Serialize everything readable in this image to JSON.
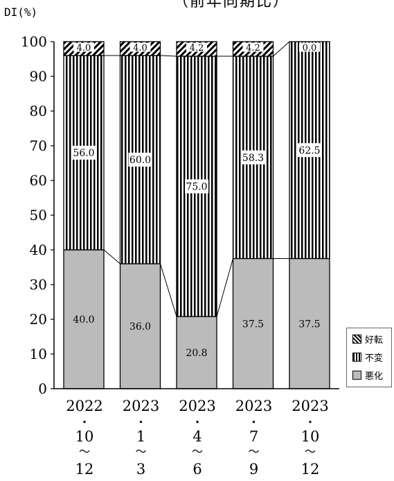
{
  "page": {
    "title": "（前年同期比）",
    "y_unit": "DI(%)"
  },
  "chart_data": {
    "type": "bar",
    "stacked": true,
    "categories": [
      [
        "2022",
        "・",
        "10",
        "〜",
        "12"
      ],
      [
        "2023",
        "・",
        "1",
        "〜",
        "3"
      ],
      [
        "2023",
        "・",
        "4",
        "〜",
        "6"
      ],
      [
        "2023",
        "・",
        "7",
        "〜",
        "9"
      ],
      [
        "2023",
        "・",
        "10",
        "〜",
        "12"
      ]
    ],
    "series": [
      {
        "name": "悪化",
        "values": [
          40.0,
          36.0,
          20.8,
          37.5,
          37.5
        ],
        "labels": [
          "40.0",
          "36.0",
          "20.8",
          "37.5",
          "37.5"
        ],
        "pattern": "solid",
        "color": "#bbbbbb"
      },
      {
        "name": "不変",
        "values": [
          56.0,
          60.0,
          75.0,
          58.3,
          62.5
        ],
        "labels": [
          "56.0",
          "60.0",
          "75.0",
          "58.3",
          "62.5"
        ],
        "pattern": "vertical-stripes",
        "color": "#000000"
      },
      {
        "name": "好転",
        "values": [
          4.0,
          4.0,
          4.2,
          4.2,
          0.0
        ],
        "labels": [
          "4.0",
          "4.0",
          "4.2",
          "4.2",
          "0.0"
        ],
        "pattern": "diagonal-stripes",
        "color": "#000000"
      }
    ],
    "ylim": [
      0,
      100
    ],
    "yticks": [
      "0",
      "10",
      "20",
      "30",
      "40",
      "50",
      "60",
      "70",
      "80",
      "90",
      "100"
    ],
    "connector_lines": true,
    "legend": {
      "position": "right",
      "entries": [
        "好転",
        "不変",
        "悪化"
      ]
    }
  }
}
